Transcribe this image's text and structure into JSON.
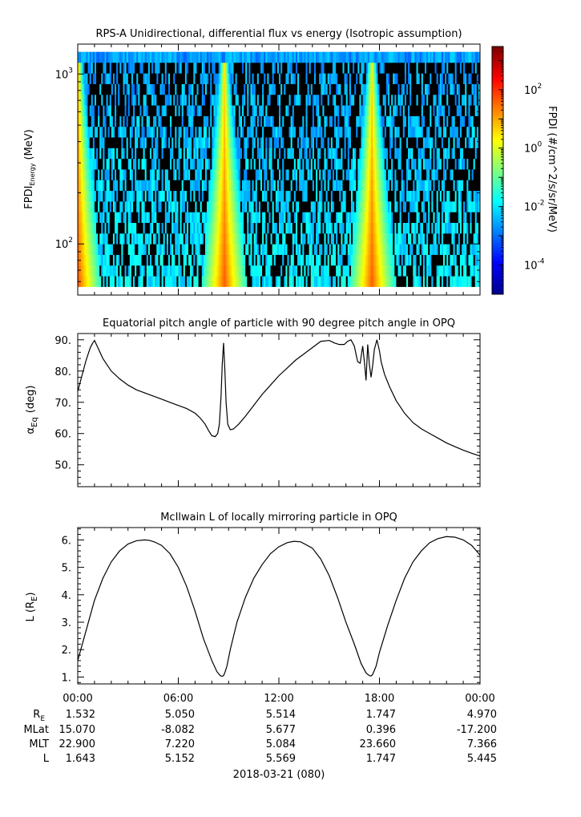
{
  "chart_data": [
    {
      "type": "heatmap",
      "title": "RPS-A Unidirectional, differential flux vs energy (Isotropic assumption)",
      "ylabel_main": "FPDI",
      "ylabel_sub": "Energy",
      "ylabel_unit": "(MeV)",
      "yscale": "log",
      "ylim": [
        50,
        1500
      ],
      "yticks": [
        {
          "value": 100,
          "base": "10",
          "exp": "2"
        },
        {
          "value": 1000,
          "base": "10",
          "exp": "3"
        }
      ],
      "energy_range": [
        56,
        1350
      ],
      "colorbar": {
        "label": "FPDI (#/cm^2/s/sr/MeV)",
        "scale": "log",
        "range": [
          1e-05,
          3000
        ],
        "ticks": [
          {
            "value": 0.0001,
            "base": "10",
            "exp": "-4"
          },
          {
            "value": 0.01,
            "base": "10",
            "exp": "-2"
          },
          {
            "value": 1,
            "base": "10",
            "exp": "0"
          },
          {
            "value": 100,
            "base": "10",
            "exp": "2"
          }
        ]
      },
      "bright_bands_hours": [
        0,
        8.7,
        17.5
      ],
      "colors": [
        "#00008f",
        "#0000ff",
        "#007fff",
        "#00ffff",
        "#7fff7f",
        "#ffff00",
        "#ff7f00",
        "#ff0000",
        "#7f0000"
      ]
    },
    {
      "type": "line",
      "title": "Equatorial pitch angle of particle with 90 degree pitch angle in OPQ",
      "ylabel_main": "α",
      "ylabel_sub": "Eq",
      "ylabel_unit": "(deg)",
      "ylim": [
        43,
        92
      ],
      "yticks": [
        "50.",
        "60.",
        "70.",
        "80.",
        "90."
      ],
      "x_hours": [
        0,
        0.25,
        0.5,
        0.75,
        0.9,
        1.0,
        1.2,
        1.5,
        2.0,
        2.5,
        3.0,
        3.5,
        4.0,
        4.5,
        5.0,
        5.5,
        6.0,
        6.5,
        7.0,
        7.3,
        7.6,
        7.8,
        8.0,
        8.2,
        8.35,
        8.45,
        8.55,
        8.62,
        8.7,
        8.78,
        8.85,
        8.95,
        9.1,
        9.3,
        9.6,
        10.0,
        10.5,
        11.0,
        11.5,
        12.0,
        12.5,
        13.0,
        13.5,
        14.0,
        14.5,
        15.0,
        15.3,
        15.6,
        15.9,
        16.1,
        16.3,
        16.5,
        16.7,
        16.85,
        17.0,
        17.1,
        17.2,
        17.3,
        17.4,
        17.5,
        17.6,
        17.7,
        17.85,
        18.0,
        18.1,
        18.3,
        18.6,
        19.0,
        19.5,
        20.0,
        20.5,
        21.0,
        21.5,
        22.0,
        22.5,
        23.0,
        23.5,
        24.0
      ],
      "y_deg": [
        73.5,
        78.5,
        83.5,
        87.5,
        89.0,
        89.8,
        87.5,
        84.0,
        80.0,
        77.5,
        75.5,
        74.0,
        73.0,
        72.0,
        71.0,
        70.0,
        69.0,
        68.0,
        66.5,
        65.0,
        63.0,
        61.0,
        59.3,
        59.0,
        60.0,
        63.0,
        72.0,
        82.0,
        89.0,
        80.0,
        70.0,
        63.0,
        61.2,
        61.5,
        63.0,
        65.5,
        69.0,
        72.5,
        75.5,
        78.5,
        81.0,
        83.5,
        85.5,
        87.5,
        89.5,
        89.8,
        89.0,
        88.5,
        88.5,
        89.5,
        90.0,
        88.0,
        83.0,
        82.5,
        88.0,
        83.0,
        77.0,
        88.5,
        82.0,
        78.0,
        82.0,
        87.0,
        90.0,
        86.5,
        83.0,
        79.0,
        75.0,
        70.5,
        66.5,
        63.5,
        61.5,
        60.0,
        58.5,
        57.0,
        55.8,
        54.7,
        53.7,
        52.8
      ]
    },
    {
      "type": "line",
      "title": "McIlwain L of locally mirroring particle in OPQ",
      "ylabel_main": "L (R",
      "ylabel_sub": "E",
      "ylabel_unit": ")",
      "ylim": [
        0.75,
        6.45
      ],
      "yticks": [
        "1.",
        "2.",
        "3.",
        "4.",
        "5.",
        "6."
      ],
      "x_hours": [
        0,
        0.5,
        1.0,
        1.5,
        2.0,
        2.5,
        3.0,
        3.5,
        4.0,
        4.3,
        4.6,
        5.0,
        5.5,
        6.0,
        6.5,
        7.0,
        7.5,
        8.0,
        8.3,
        8.5,
        8.6,
        8.7,
        8.8,
        8.9,
        9.1,
        9.5,
        10.0,
        10.5,
        11.0,
        11.5,
        12.0,
        12.5,
        12.9,
        13.3,
        14.0,
        14.5,
        15.0,
        15.5,
        16.0,
        16.5,
        16.9,
        17.2,
        17.4,
        17.5,
        17.6,
        17.8,
        18.0,
        18.5,
        19.0,
        19.5,
        20.0,
        20.5,
        21.0,
        21.5,
        22.0,
        22.5,
        23.0,
        23.5,
        24.0
      ],
      "y_L": [
        1.6,
        2.7,
        3.8,
        4.6,
        5.2,
        5.6,
        5.85,
        5.97,
        6.0,
        5.98,
        5.92,
        5.8,
        5.5,
        5.0,
        4.3,
        3.4,
        2.4,
        1.6,
        1.2,
        1.05,
        1.03,
        1.05,
        1.2,
        1.4,
        2.0,
        3.0,
        3.9,
        4.6,
        5.1,
        5.5,
        5.75,
        5.9,
        5.95,
        5.93,
        5.7,
        5.3,
        4.7,
        3.9,
        3.0,
        2.2,
        1.5,
        1.15,
        1.05,
        1.04,
        1.1,
        1.4,
        1.9,
        2.9,
        3.8,
        4.6,
        5.2,
        5.6,
        5.9,
        6.05,
        6.12,
        6.1,
        6.0,
        5.8,
        5.45
      ]
    }
  ],
  "x_axis": {
    "ticks": [
      "00:00",
      "06:00",
      "12:00",
      "18:00",
      "00:00"
    ],
    "date_label": "2018-03-21 (080)",
    "rows": [
      {
        "label": "R",
        "sub": "E",
        "values": [
          "1.532",
          "5.050",
          "5.514",
          "1.747",
          "4.970"
        ]
      },
      {
        "label": "MLat",
        "sub": "",
        "values": [
          "15.070",
          "-8.082",
          "5.677",
          "0.396",
          "-17.200"
        ]
      },
      {
        "label": "MLT",
        "sub": "",
        "values": [
          "22.900",
          "7.220",
          "5.084",
          "23.660",
          "7.366"
        ]
      },
      {
        "label": "L",
        "sub": "",
        "values": [
          "1.643",
          "5.152",
          "5.569",
          "1.747",
          "5.445"
        ]
      }
    ]
  }
}
